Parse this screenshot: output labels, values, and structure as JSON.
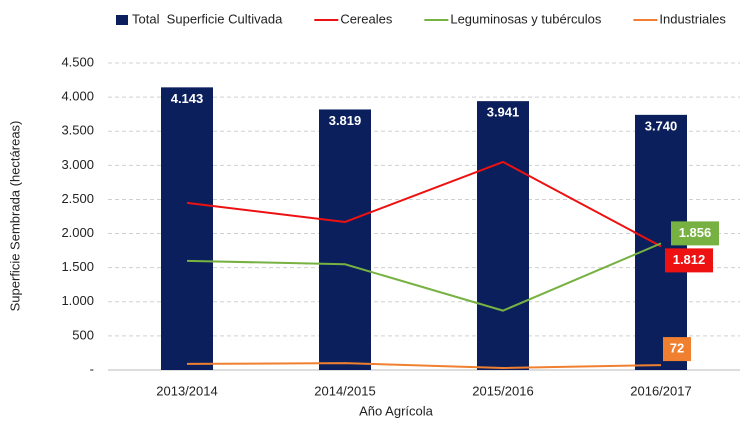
{
  "chart_data": {
    "type": "bar",
    "x_label": "Año Agrícola",
    "y_label": "Superficie Sembrada (hectáreas)",
    "categories": [
      "2013/2014",
      "2014/2015",
      "2015/2016",
      "2016/2017"
    ],
    "ylim": [
      0,
      4500
    ],
    "yticks": [
      {
        "value": 0,
        "label": "-"
      },
      500,
      {
        "value": 1000,
        "label": "1.000"
      },
      {
        "value": 1500,
        "label": "1.500"
      },
      {
        "value": 2000,
        "label": "2.000"
      },
      {
        "value": 2500,
        "label": "2.500"
      },
      {
        "value": 3000,
        "label": "3.000"
      },
      {
        "value": 3500,
        "label": "3.500"
      },
      {
        "value": 4000,
        "label": "4.000"
      },
      {
        "value": 4500,
        "label": "4.500"
      }
    ],
    "grid": true,
    "legend": "top",
    "series": [
      {
        "name": "Total  Superficie Cultivada",
        "type": "bar",
        "color": "#0b1f5c",
        "values": [
          4143,
          3819,
          3941,
          3740
        ],
        "value_labels": [
          "4.143",
          "3.819",
          "3.941",
          "3.740"
        ]
      },
      {
        "name": "Cereales",
        "type": "line",
        "color": "#ee1111",
        "values": [
          2450,
          2170,
          3050,
          1812
        ],
        "value_labels": [
          null,
          null,
          null,
          "1.812"
        ]
      },
      {
        "name": "Leguminosas y tubérculos",
        "type": "line",
        "color": "#77b142",
        "values": [
          1600,
          1550,
          870,
          1856
        ],
        "value_labels": [
          null,
          null,
          null,
          "1.856"
        ]
      },
      {
        "name": "Industriales",
        "type": "line",
        "color": "#f08030",
        "values": [
          90,
          100,
          30,
          72
        ],
        "value_labels": [
          null,
          null,
          null,
          "72"
        ]
      }
    ]
  }
}
